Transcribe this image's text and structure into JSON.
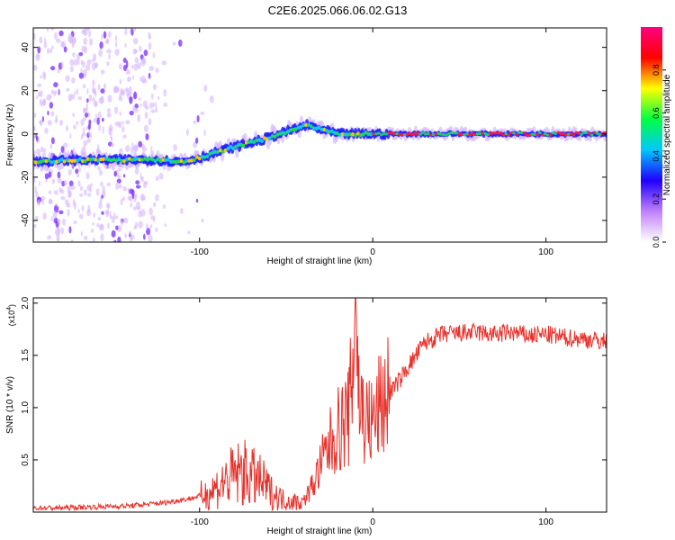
{
  "title": "C2E6.2025.066.06.02.G13",
  "chart_data": [
    {
      "type": "heatmap",
      "xlabel": "Height of straight line (km)",
      "ylabel": "Frequency (Hz)",
      "xlim": [
        -196,
        135
      ],
      "ylim": [
        -50,
        49
      ],
      "xticks": [
        -100,
        0,
        100
      ],
      "xticklabels": [
        "-100",
        "0",
        "100"
      ],
      "yticks": [
        -40,
        -20,
        0,
        20,
        40
      ],
      "yticklabels": [
        "-40",
        "-20",
        "0",
        "20",
        "40"
      ],
      "ridge": {
        "x": [
          -196,
          -170,
          -140,
          -125,
          -110,
          -100,
          -80,
          -65,
          -50,
          -38,
          -30,
          -20,
          -10,
          0,
          10,
          40,
          80,
          135
        ],
        "freq": [
          -13,
          -12,
          -12,
          -12,
          -13,
          -11,
          -6,
          -3,
          1,
          4,
          2,
          0,
          0,
          0,
          0,
          0,
          0,
          0
        ]
      },
      "colorbar": {
        "label": "Normalized spectral amplitude",
        "range": [
          0,
          1
        ],
        "ticks": [
          0.0,
          0.2,
          0.4,
          0.6,
          0.8
        ],
        "ticklabels": [
          "0.0",
          "0.2",
          "0.4",
          "0.6",
          "0.8"
        ],
        "colors": [
          "#ffffff",
          "#c080ff",
          "#2000ff",
          "#00c8ff",
          "#00ff40",
          "#ffff00",
          "#ff0000",
          "#ff0080"
        ]
      },
      "grid": false
    },
    {
      "type": "line",
      "xlabel": "Height of straight line (km)",
      "ylabel": "SNR (10 * v/v)",
      "scale_label": "(x10",
      "scale_exponent": "4",
      "scale_suffix": ")",
      "xlim": [
        -196,
        135
      ],
      "ylim": [
        0,
        20500
      ],
      "xticks": [
        -100,
        0,
        100
      ],
      "xticklabels": [
        "-100",
        "0",
        "100"
      ],
      "yticks": [
        5000,
        10000,
        15000,
        20000
      ],
      "yticklabels": [
        "0.5",
        "1.0",
        "1.5",
        "2.0"
      ],
      "series": [
        {
          "name": "SNR",
          "color": "#e8302a",
          "x": [
            -196,
            -180,
            -160,
            -140,
            -120,
            -105,
            -95,
            -88,
            -82,
            -76,
            -70,
            -64,
            -58,
            -52,
            -46,
            -40,
            -34,
            -30,
            -26,
            -22,
            -18,
            -14,
            -12,
            -10,
            -8,
            -4,
            0,
            5,
            10,
            15,
            20,
            25,
            30,
            40,
            50,
            60,
            70,
            80,
            90,
            100,
            110,
            120,
            130,
            135
          ],
          "y": [
            400,
            400,
            500,
            600,
            900,
            1300,
            1800,
            2600,
            3300,
            3800,
            3400,
            2800,
            1800,
            1200,
            1000,
            1000,
            2800,
            4500,
            6000,
            7500,
            8200,
            9000,
            12500,
            20500,
            11000,
            8800,
            8500,
            10500,
            11500,
            12500,
            13800,
            15000,
            16200,
            17000,
            17100,
            17200,
            17000,
            17200,
            16900,
            17000,
            16700,
            16600,
            16400,
            16300
          ]
        }
      ],
      "grid": false
    }
  ]
}
